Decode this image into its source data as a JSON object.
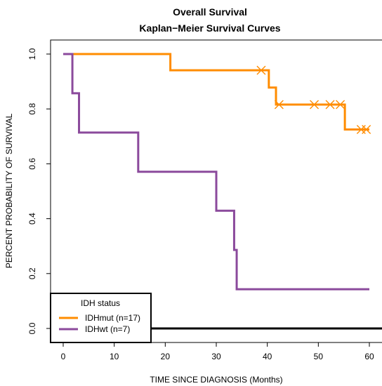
{
  "chart_data": {
    "type": "line",
    "title": "Overall Survival",
    "subtitle": "Kaplan−Meier Survival Curves",
    "xlabel": "TIME SINCE DIAGNOSIS (Months)",
    "ylabel": "PERCENT PROBABILITY OF SURVIVAL",
    "xlim": [
      0,
      60
    ],
    "ylim": [
      0,
      1
    ],
    "x_ticks": [
      "0",
      "10",
      "20",
      "30",
      "40",
      "50",
      "60"
    ],
    "y_ticks": [
      "0.0",
      "0.2",
      "0.4",
      "0.6",
      "0.8",
      "1.0"
    ],
    "grid": false,
    "legend": {
      "title": "IDH status",
      "position": "bottom-left"
    },
    "series": [
      {
        "name": "IDHmut (n=17)",
        "color": "#ff8c00",
        "steps": [
          {
            "x": 0,
            "y": 1.0
          },
          {
            "x": 21,
            "y": 0.941
          },
          {
            "x": 40.3,
            "y": 0.878
          },
          {
            "x": 41.7,
            "y": 0.816
          },
          {
            "x": 55.2,
            "y": 0.725
          }
        ],
        "end_x": 60,
        "censored": [
          {
            "x": 38.8,
            "y": 0.941
          },
          {
            "x": 42.3,
            "y": 0.816
          },
          {
            "x": 49.2,
            "y": 0.816
          },
          {
            "x": 52.3,
            "y": 0.816
          },
          {
            "x": 54.3,
            "y": 0.816
          },
          {
            "x": 58.4,
            "y": 0.725
          },
          {
            "x": 59.4,
            "y": 0.725
          }
        ]
      },
      {
        "name": "IDHwt (n=7)",
        "color": "#8b4a9c",
        "steps": [
          {
            "x": 0,
            "y": 1.0
          },
          {
            "x": 1.8,
            "y": 0.857
          },
          {
            "x": 3.1,
            "y": 0.714
          },
          {
            "x": 14.7,
            "y": 0.571
          },
          {
            "x": 30.0,
            "y": 0.429
          },
          {
            "x": 33.5,
            "y": 0.286
          },
          {
            "x": 34.0,
            "y": 0.143
          }
        ],
        "end_x": 60,
        "censored": []
      }
    ]
  }
}
